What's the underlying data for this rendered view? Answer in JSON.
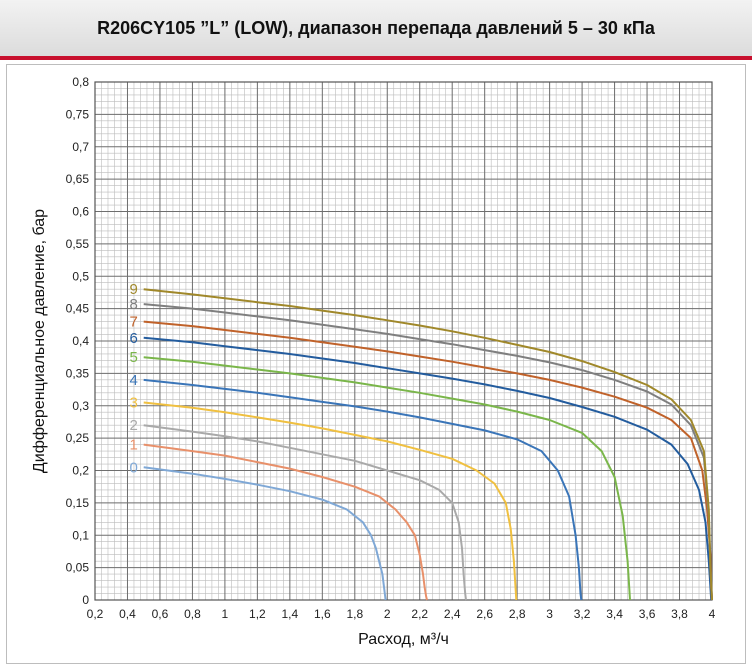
{
  "header": {
    "title": "R206CY105 ”L” (LOW), диапазон перепада давлений 5 – 30 кПа"
  },
  "chart_data": {
    "type": "line",
    "xlabel": "Расход, м³/ч",
    "ylabel": "Дифференциальное давление, бар",
    "xlim": [
      0.2,
      4.0
    ],
    "ylim": [
      0,
      0.8
    ],
    "x_ticks": [
      "0,2",
      "0,4",
      "0,6",
      "0,8",
      "1",
      "1,2",
      "1,4",
      "1,6",
      "1,8",
      "2",
      "2,2",
      "2,4",
      "2,6",
      "2,8",
      "3",
      "3,2",
      "3,4",
      "3,6",
      "3,8",
      "4"
    ],
    "x_tick_values": [
      0.2,
      0.4,
      0.6,
      0.8,
      1.0,
      1.2,
      1.4,
      1.6,
      1.8,
      2.0,
      2.2,
      2.4,
      2.6,
      2.8,
      3.0,
      3.2,
      3.4,
      3.6,
      3.8,
      4.0
    ],
    "y_ticks": [
      "0",
      "0,05",
      "0,1",
      "0,15",
      "0,2",
      "0,25",
      "0,3",
      "0,35",
      "0,4",
      "0,45",
      "0,5",
      "0,55",
      "0,6",
      "0,65",
      "0,7",
      "0,75",
      "0,8"
    ],
    "y_tick_values": [
      0,
      0.05,
      0.1,
      0.15,
      0.2,
      0.25,
      0.3,
      0.35,
      0.4,
      0.45,
      0.5,
      0.55,
      0.6,
      0.65,
      0.7,
      0.75,
      0.8
    ],
    "grid": true,
    "series": [
      {
        "label": "0",
        "color": "#7fa8d6",
        "x": [
          0.5,
          0.8,
          1.0,
          1.2,
          1.4,
          1.6,
          1.75,
          1.85,
          1.9,
          1.93,
          1.95,
          1.97,
          1.98,
          1.985,
          1.99
        ],
        "y": [
          0.205,
          0.195,
          0.187,
          0.178,
          0.168,
          0.155,
          0.14,
          0.12,
          0.1,
          0.08,
          0.06,
          0.04,
          0.02,
          0.01,
          0.0
        ]
      },
      {
        "label": "1",
        "color": "#e8906a",
        "x": [
          0.5,
          0.8,
          1.0,
          1.2,
          1.4,
          1.6,
          1.8,
          1.95,
          2.05,
          2.12,
          2.17,
          2.2,
          2.22,
          2.23,
          2.24,
          2.245
        ],
        "y": [
          0.24,
          0.23,
          0.223,
          0.213,
          0.203,
          0.19,
          0.175,
          0.16,
          0.14,
          0.12,
          0.1,
          0.07,
          0.04,
          0.02,
          0.005,
          0.0
        ]
      },
      {
        "label": "2",
        "color": "#a9a9a9",
        "x": [
          0.5,
          0.8,
          1.0,
          1.2,
          1.4,
          1.6,
          1.8,
          2.0,
          2.2,
          2.32,
          2.4,
          2.44,
          2.46,
          2.47,
          2.48,
          2.485
        ],
        "y": [
          0.27,
          0.26,
          0.253,
          0.245,
          0.235,
          0.225,
          0.215,
          0.2,
          0.185,
          0.17,
          0.15,
          0.12,
          0.08,
          0.04,
          0.01,
          0.0
        ]
      },
      {
        "label": "3",
        "color": "#f0c040",
        "x": [
          0.5,
          0.8,
          1.0,
          1.2,
          1.4,
          1.6,
          1.8,
          2.0,
          2.2,
          2.4,
          2.55,
          2.66,
          2.73,
          2.76,
          2.78,
          2.79,
          2.795
        ],
        "y": [
          0.305,
          0.297,
          0.29,
          0.282,
          0.274,
          0.265,
          0.255,
          0.245,
          0.232,
          0.218,
          0.2,
          0.18,
          0.15,
          0.11,
          0.06,
          0.02,
          0.0
        ]
      },
      {
        "label": "4",
        "color": "#3a75b8",
        "x": [
          0.5,
          0.8,
          1.0,
          1.2,
          1.4,
          1.6,
          1.8,
          2.0,
          2.2,
          2.4,
          2.6,
          2.8,
          2.95,
          3.05,
          3.12,
          3.16,
          3.18,
          3.19,
          3.195
        ],
        "y": [
          0.34,
          0.332,
          0.326,
          0.32,
          0.313,
          0.306,
          0.299,
          0.291,
          0.282,
          0.272,
          0.262,
          0.248,
          0.23,
          0.2,
          0.16,
          0.1,
          0.05,
          0.01,
          0.0
        ]
      },
      {
        "label": "5",
        "color": "#7ab64a",
        "x": [
          0.5,
          0.8,
          1.0,
          1.2,
          1.4,
          1.6,
          1.8,
          2.0,
          2.2,
          2.4,
          2.6,
          2.8,
          3.0,
          3.2,
          3.32,
          3.4,
          3.45,
          3.48,
          3.49,
          3.495
        ],
        "y": [
          0.375,
          0.368,
          0.362,
          0.356,
          0.35,
          0.343,
          0.336,
          0.328,
          0.32,
          0.311,
          0.302,
          0.291,
          0.278,
          0.258,
          0.23,
          0.19,
          0.13,
          0.06,
          0.02,
          0.0
        ]
      },
      {
        "label": "6",
        "color": "#235c9e",
        "x": [
          0.5,
          0.8,
          1.0,
          1.2,
          1.4,
          1.6,
          1.8,
          2.0,
          2.2,
          2.4,
          2.6,
          2.8,
          3.0,
          3.2,
          3.4,
          3.6,
          3.75,
          3.85,
          3.92,
          3.96,
          3.98,
          3.99,
          3.995
        ],
        "y": [
          0.405,
          0.398,
          0.392,
          0.386,
          0.38,
          0.373,
          0.366,
          0.358,
          0.35,
          0.342,
          0.333,
          0.323,
          0.312,
          0.298,
          0.283,
          0.263,
          0.24,
          0.21,
          0.17,
          0.12,
          0.06,
          0.02,
          0.0
        ]
      },
      {
        "label": "7",
        "color": "#c0622a",
        "x": [
          0.5,
          0.8,
          1.0,
          1.2,
          1.4,
          1.6,
          1.8,
          2.0,
          2.2,
          2.4,
          2.6,
          2.8,
          3.0,
          3.2,
          3.4,
          3.6,
          3.75,
          3.87,
          3.94,
          3.97,
          3.99,
          3.995,
          4.0
        ],
        "y": [
          0.43,
          0.423,
          0.417,
          0.411,
          0.405,
          0.398,
          0.391,
          0.384,
          0.376,
          0.368,
          0.359,
          0.35,
          0.34,
          0.328,
          0.314,
          0.297,
          0.278,
          0.25,
          0.2,
          0.14,
          0.07,
          0.02,
          0.0
        ]
      },
      {
        "label": "8",
        "color": "#7f7f7f",
        "x": [
          0.5,
          0.8,
          1.0,
          1.2,
          1.4,
          1.6,
          1.8,
          2.0,
          2.2,
          2.4,
          2.6,
          2.8,
          3.0,
          3.2,
          3.4,
          3.6,
          3.75,
          3.87,
          3.95,
          3.98,
          3.99,
          4.0
        ],
        "y": [
          0.457,
          0.45,
          0.444,
          0.438,
          0.432,
          0.425,
          0.418,
          0.411,
          0.403,
          0.395,
          0.386,
          0.377,
          0.367,
          0.355,
          0.34,
          0.322,
          0.302,
          0.27,
          0.22,
          0.13,
          0.05,
          0.0
        ]
      },
      {
        "label": "9",
        "color": "#a0882a",
        "x": [
          0.5,
          0.8,
          1.0,
          1.2,
          1.4,
          1.6,
          1.8,
          2.0,
          2.2,
          2.4,
          2.6,
          2.8,
          3.0,
          3.2,
          3.4,
          3.6,
          3.75,
          3.87,
          3.95,
          3.98,
          3.99,
          4.0
        ],
        "y": [
          0.48,
          0.472,
          0.466,
          0.46,
          0.454,
          0.447,
          0.44,
          0.432,
          0.424,
          0.415,
          0.405,
          0.394,
          0.383,
          0.369,
          0.352,
          0.332,
          0.31,
          0.278,
          0.23,
          0.14,
          0.05,
          0.0
        ]
      }
    ]
  }
}
